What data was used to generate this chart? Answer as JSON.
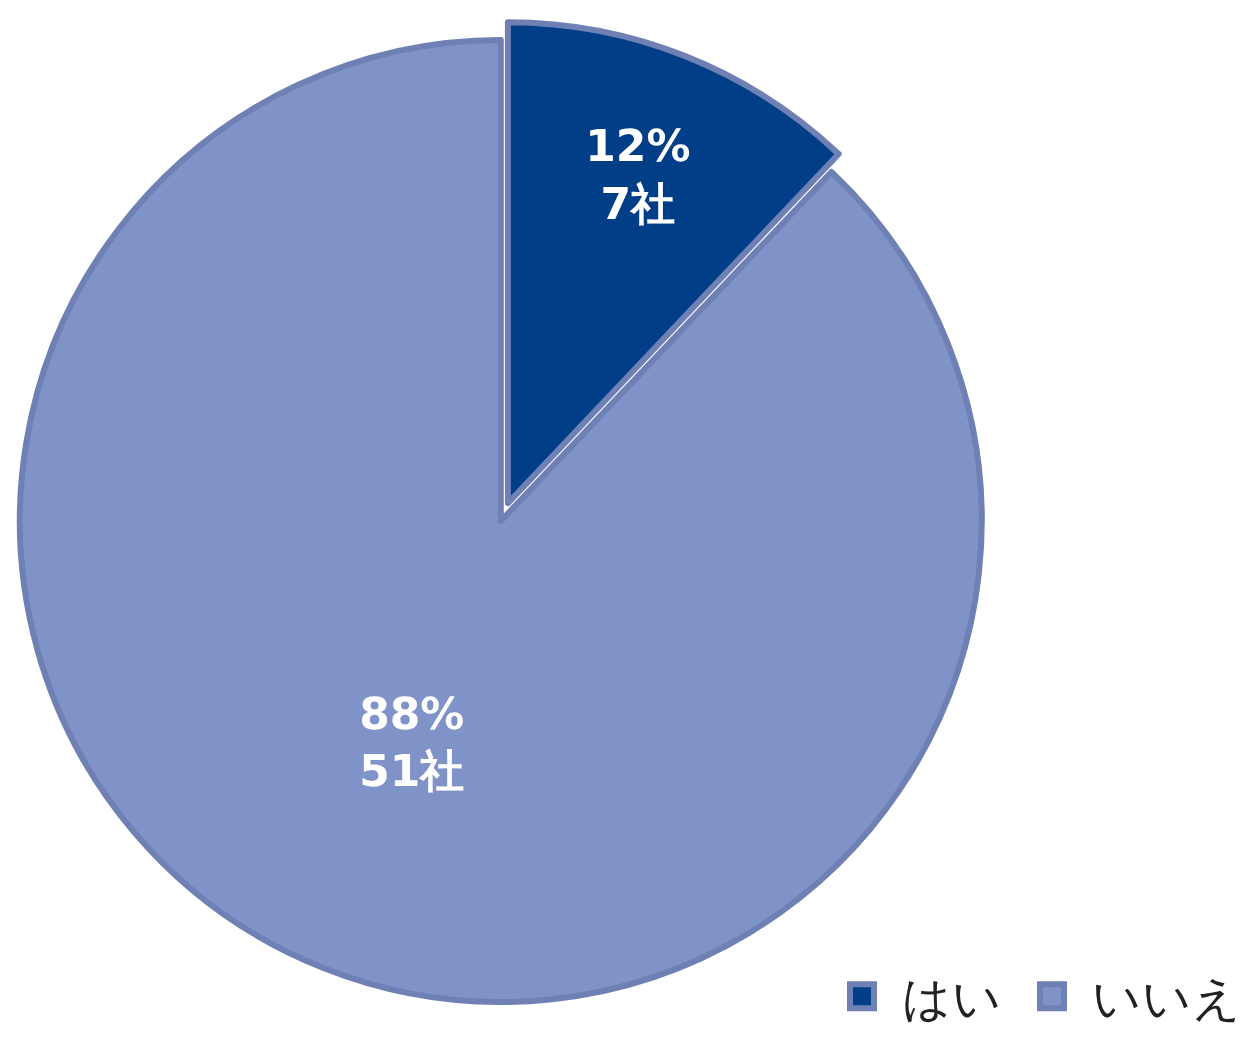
{
  "chart_data": {
    "type": "pie",
    "categories": [
      "はい",
      "いいえ"
    ],
    "values": [
      7,
      51
    ],
    "colors": [
      "#003f87",
      "#7f93c8"
    ],
    "value_labels": [
      "12%\n7社",
      "88%\n51社"
    ],
    "legend": "bottom right"
  }
}
